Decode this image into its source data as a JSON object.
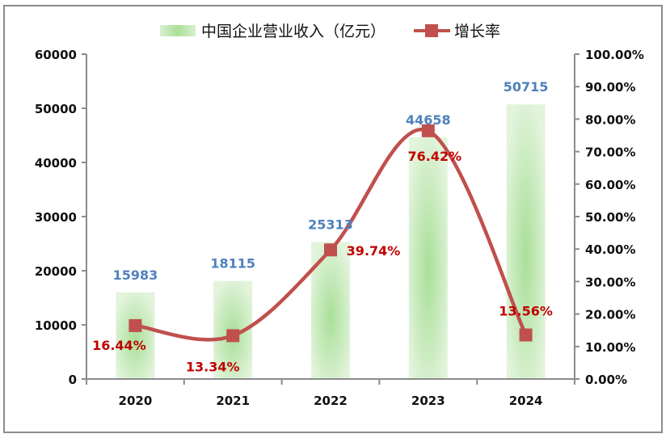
{
  "chart_data": {
    "type": "bar+line",
    "title": "",
    "categories": [
      "2020",
      "2021",
      "2022",
      "2023",
      "2024"
    ],
    "series": [
      {
        "name": "中国企业营业收入（亿元）",
        "type": "bar",
        "axis": "left",
        "values": [
          15983,
          18115,
          25313,
          44658,
          50715
        ],
        "labels": [
          "15983",
          "18115",
          "25313",
          "44658",
          "50715"
        ],
        "color": "#a8df98"
      },
      {
        "name": "增长率",
        "type": "line",
        "axis": "right",
        "values": [
          16.44,
          13.34,
          39.74,
          76.42,
          13.56
        ],
        "labels": [
          "16.44%",
          "13.34%",
          "39.74%",
          "76.42%",
          "13.56%"
        ],
        "color": "#c0504d"
      }
    ],
    "left_axis": {
      "ylim": [
        0,
        60000
      ],
      "ticks": [
        "0",
        "10000",
        "20000",
        "30000",
        "40000",
        "50000",
        "60000"
      ]
    },
    "right_axis": {
      "ylim": [
        0,
        100
      ],
      "ticks": [
        "0.00%",
        "10.00%",
        "20.00%",
        "30.00%",
        "40.00%",
        "50.00%",
        "60.00%",
        "70.00%",
        "80.00%",
        "90.00%",
        "100.00%"
      ]
    },
    "xlabel": "",
    "ylabel": "",
    "grid": false,
    "legend_position": "top-center",
    "colors": {
      "bar_label": "#4f81bd",
      "line_label": "#c00000",
      "axis": "#8c8c8c"
    }
  }
}
